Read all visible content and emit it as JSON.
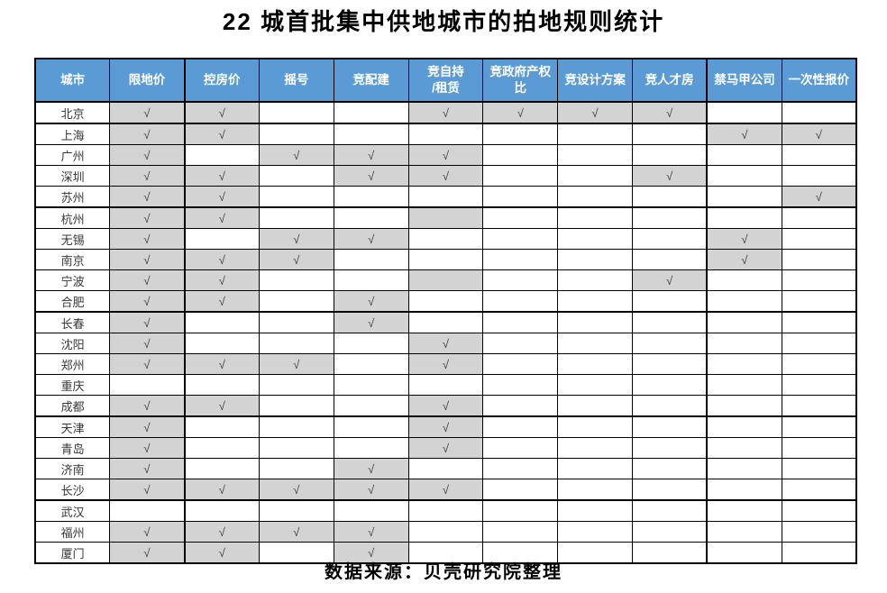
{
  "colors": {
    "header_bg": "#5B9BD5",
    "header_text": "#FFFFFF",
    "shaded_cell": "#D3D3D3",
    "check": "#404040",
    "border": "#000000"
  },
  "check_glyph": "√",
  "chart_data": {
    "type": "table",
    "title": "22 城首批集中供地城市的拍地规则统计",
    "source": "数据来源：贝壳研究院整理",
    "columns": [
      "城市",
      "限地价",
      "控房价",
      "摇号",
      "竞配建",
      "竞自持\n/租赁",
      "竞政府产权\n比",
      "竞设计方案",
      "竞人才房",
      "禁马甲公司",
      "一次性报价"
    ],
    "cell_states_meaning": {
      "check": "√ 勾选(灰底)",
      "shade": "灰底无勾",
      "": "空白"
    },
    "rows": [
      {
        "city": "北京",
        "cells": [
          "check",
          "check",
          "",
          "",
          "check",
          "check",
          "check",
          "check",
          "",
          ""
        ]
      },
      {
        "city": "上海",
        "cells": [
          "check",
          "check",
          "",
          "",
          "",
          "",
          "",
          "",
          "check",
          "check"
        ]
      },
      {
        "city": "广州",
        "cells": [
          "check",
          "",
          "check",
          "check",
          "check",
          "",
          "",
          "",
          "",
          ""
        ]
      },
      {
        "city": "深圳",
        "cells": [
          "check",
          "check",
          "",
          "check",
          "check",
          "",
          "",
          "check",
          "",
          ""
        ]
      },
      {
        "city": "苏州",
        "cells": [
          "check",
          "check",
          "",
          "",
          "",
          "",
          "",
          "",
          "",
          "check"
        ]
      },
      {
        "city": "杭州",
        "cells": [
          "check",
          "check",
          "",
          "",
          "shade",
          "",
          "",
          "",
          "",
          ""
        ]
      },
      {
        "city": "无锡",
        "cells": [
          "check",
          "",
          "check",
          "check",
          "",
          "",
          "",
          "",
          "check",
          ""
        ]
      },
      {
        "city": "南京",
        "cells": [
          "check",
          "check",
          "check",
          "",
          "",
          "",
          "",
          "",
          "check",
          ""
        ]
      },
      {
        "city": "宁波",
        "cells": [
          "check",
          "check",
          "",
          "",
          "shade",
          "",
          "",
          "check",
          "",
          ""
        ]
      },
      {
        "city": "合肥",
        "cells": [
          "check",
          "check",
          "",
          "check",
          "",
          "",
          "",
          "",
          "",
          ""
        ]
      },
      {
        "city": "长春",
        "cells": [
          "check",
          "",
          "",
          "check",
          "",
          "",
          "",
          "",
          "",
          ""
        ]
      },
      {
        "city": "沈阳",
        "cells": [
          "check",
          "",
          "",
          "",
          "check",
          "",
          "",
          "",
          "",
          ""
        ]
      },
      {
        "city": "郑州",
        "cells": [
          "check",
          "check",
          "check",
          "",
          "check",
          "",
          "",
          "",
          "",
          ""
        ]
      },
      {
        "city": "重庆",
        "cells": [
          "",
          "",
          "",
          "",
          "",
          "",
          "",
          "",
          "",
          ""
        ]
      },
      {
        "city": "成都",
        "cells": [
          "check",
          "check",
          "",
          "",
          "check",
          "",
          "",
          "",
          "",
          ""
        ]
      },
      {
        "city": "天津",
        "cells": [
          "check",
          "",
          "",
          "",
          "check",
          "",
          "",
          "",
          "",
          ""
        ]
      },
      {
        "city": "青岛",
        "cells": [
          "check",
          "",
          "",
          "",
          "check",
          "",
          "",
          "",
          "",
          ""
        ]
      },
      {
        "city": "济南",
        "cells": [
          "check",
          "",
          "",
          "check",
          "",
          "",
          "",
          "",
          "",
          ""
        ]
      },
      {
        "city": "长沙",
        "cells": [
          "check",
          "check",
          "check",
          "check",
          "check",
          "",
          "",
          "",
          "",
          ""
        ]
      },
      {
        "city": "武汉",
        "cells": [
          "",
          "",
          "",
          "",
          "",
          "",
          "",
          "",
          "",
          ""
        ]
      },
      {
        "city": "福州",
        "cells": [
          "check",
          "check",
          "check",
          "check",
          "",
          "",
          "",
          "",
          "",
          ""
        ]
      },
      {
        "city": "厦门",
        "cells": [
          "check",
          "check",
          "",
          "check",
          "",
          "",
          "",
          "",
          "",
          ""
        ]
      }
    ],
    "thick_border_after_rows": [
      0,
      4,
      9,
      14,
      18
    ],
    "thick_border_after_columns": [
      1,
      8
    ]
  }
}
